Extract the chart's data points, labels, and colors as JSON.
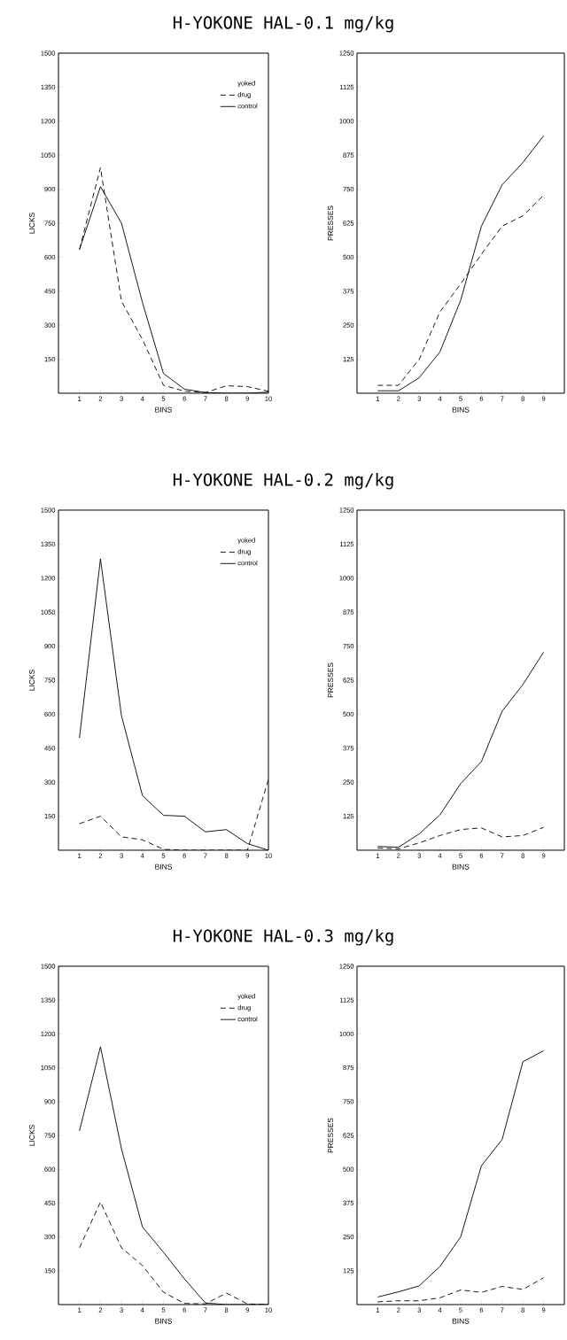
{
  "chart_data": [
    {
      "type": "line",
      "title": "H-YOKONE HAL-0.1 mg/kg",
      "xlabel": "BINS",
      "ylabel": "LICKS",
      "legend_title": "yoked",
      "legend": "top right",
      "x": [
        1,
        2,
        3,
        4,
        5,
        6,
        7,
        8,
        9,
        10
      ],
      "xlim": [
        0,
        10
      ],
      "xticks": [
        1,
        2,
        3,
        4,
        5,
        6,
        7,
        8,
        9,
        10
      ],
      "ylim": [
        0,
        1500
      ],
      "yticks": [
        150,
        300,
        450,
        600,
        750,
        900,
        1050,
        1200,
        1350,
        1500
      ],
      "series": [
        {
          "name": "drug",
          "color": "#000000",
          "line_style": "dashed",
          "values": [
            634,
            995,
            406,
            237,
            35,
            9,
            3,
            33,
            29,
            9
          ]
        },
        {
          "name": "control",
          "color": "#000000",
          "line_style": "solid",
          "values": [
            634,
            911,
            750,
            400,
            87,
            18,
            3,
            0,
            0,
            5
          ]
        }
      ]
    },
    {
      "type": "line",
      "xlabel": "BINS",
      "ylabel": "PRESSES",
      "x": [
        1,
        2,
        3,
        4,
        5,
        6,
        7,
        8,
        9
      ],
      "xlim": [
        0,
        10
      ],
      "xticks": [
        1,
        2,
        3,
        4,
        5,
        6,
        7,
        8,
        9
      ],
      "ylim": [
        0,
        1250
      ],
      "yticks": [
        125,
        250,
        375,
        500,
        625,
        750,
        875,
        1000,
        1125,
        1250
      ],
      "series": [
        {
          "color": "#000000",
          "line_style": "dashed",
          "values": [
            29,
            29,
            125,
            299,
            402,
            511,
            614,
            652,
            728
          ]
        },
        {
          "color": "#000000",
          "line_style": "solid",
          "values": [
            9,
            9,
            57,
            152,
            342,
            614,
            766,
            848,
            946
          ]
        }
      ]
    },
    {
      "type": "line",
      "title": "H-YOKONE HAL-0.2 mg/kg",
      "xlabel": "BINS",
      "ylabel": "LICKS",
      "legend_title": "yoked",
      "legend": "top right",
      "x": [
        1,
        2,
        3,
        4,
        5,
        6,
        7,
        8,
        9,
        10
      ],
      "xlim": [
        0,
        10
      ],
      "xticks": [
        1,
        2,
        3,
        4,
        5,
        6,
        7,
        8,
        9,
        10
      ],
      "ylim": [
        0,
        1500
      ],
      "yticks": [
        150,
        300,
        450,
        600,
        750,
        900,
        1050,
        1200,
        1350,
        1500
      ],
      "series": [
        {
          "name": "drug",
          "color": "#000000",
          "line_style": "dashed",
          "values": [
            117,
            150,
            59,
            46,
            4,
            0,
            0,
            0,
            0,
            313
          ]
        },
        {
          "name": "control",
          "color": "#000000",
          "line_style": "solid",
          "values": [
            496,
            1285,
            593,
            241,
            154,
            150,
            81,
            91,
            29,
            0
          ]
        }
      ]
    },
    {
      "type": "line",
      "xlabel": "BINS",
      "ylabel": "PRESSES",
      "x": [
        1,
        2,
        3,
        4,
        5,
        6,
        7,
        8,
        9
      ],
      "xlim": [
        0,
        10
      ],
      "xticks": [
        1,
        2,
        3,
        4,
        5,
        6,
        7,
        8,
        9
      ],
      "ylim": [
        0,
        1250
      ],
      "yticks": [
        125,
        250,
        375,
        500,
        625,
        750,
        875,
        1000,
        1125,
        1250
      ],
      "series": [
        {
          "color": "#000000",
          "line_style": "dashed",
          "values": [
            8,
            5,
            27,
            54,
            76,
            82,
            49,
            54,
            84
          ]
        },
        {
          "color": "#000000",
          "line_style": "solid",
          "values": [
            14,
            11,
            60,
            130,
            245,
            326,
            511,
            609,
            728
          ]
        }
      ]
    },
    {
      "type": "line",
      "title": "H-YOKONE HAL-0.3 mg/kg",
      "xlabel": "BINS",
      "ylabel": "LICKS",
      "legend_title": "yoked",
      "legend": "top right",
      "x": [
        1,
        2,
        3,
        4,
        5,
        6,
        7,
        8,
        9,
        10
      ],
      "xlim": [
        0,
        10
      ],
      "xticks": [
        1,
        2,
        3,
        4,
        5,
        6,
        7,
        8,
        9,
        10
      ],
      "ylim": [
        0,
        1500
      ],
      "yticks": [
        150,
        300,
        450,
        600,
        750,
        900,
        1050,
        1200,
        1350,
        1500
      ],
      "series": [
        {
          "name": "drug",
          "color": "#000000",
          "line_style": "dashed",
          "values": [
            252,
            455,
            252,
            173,
            55,
            5,
            3,
            51,
            3,
            0
          ]
        },
        {
          "name": "control",
          "color": "#000000",
          "line_style": "solid",
          "values": [
            770,
            1143,
            691,
            344,
            232,
            114,
            7,
            0,
            0,
            0
          ]
        }
      ]
    },
    {
      "type": "line",
      "xlabel": "BINS",
      "ylabel": "PRESSES",
      "x": [
        1,
        2,
        3,
        4,
        5,
        6,
        7,
        8,
        9
      ],
      "xlim": [
        0,
        10
      ],
      "xticks": [
        1,
        2,
        3,
        4,
        5,
        6,
        7,
        8,
        9
      ],
      "ylim": [
        0,
        1250
      ],
      "yticks": [
        125,
        250,
        375,
        500,
        625,
        750,
        875,
        1000,
        1125,
        1250
      ],
      "series": [
        {
          "color": "#000000",
          "line_style": "dashed",
          "values": [
            10,
            14,
            14,
            25,
            54,
            45,
            67,
            56,
            99
          ]
        },
        {
          "color": "#000000",
          "line_style": "solid",
          "values": [
            28,
            47,
            69,
            141,
            250,
            513,
            610,
            897,
            938
          ]
        }
      ]
    }
  ]
}
